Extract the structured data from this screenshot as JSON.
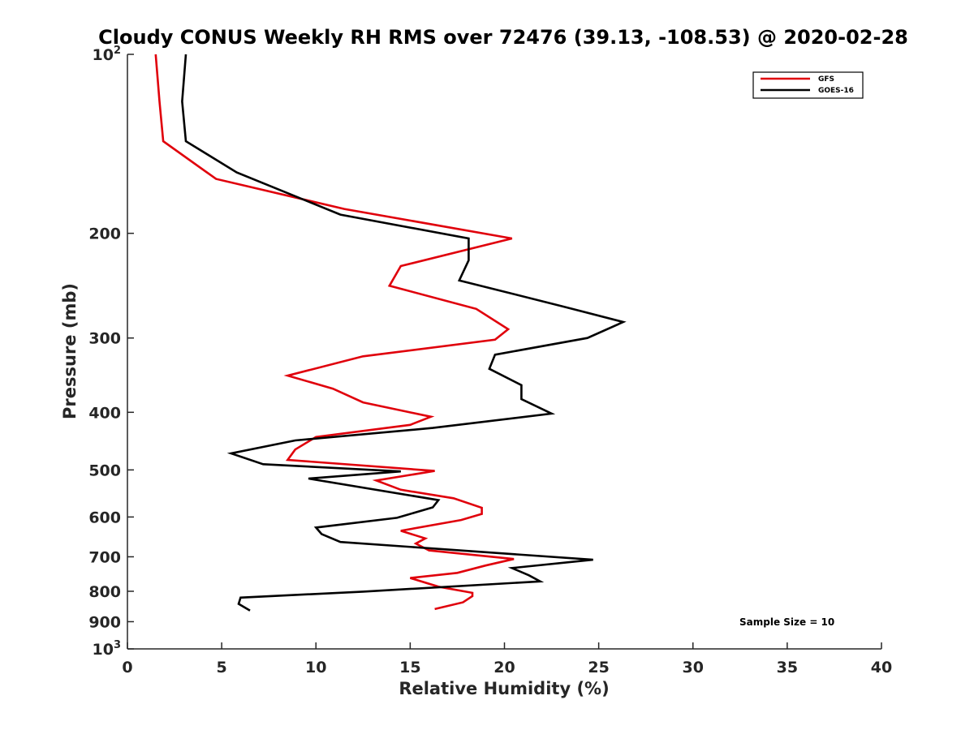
{
  "chart_data": {
    "type": "line",
    "title": "Cloudy CONUS Weekly RH RMS over 72476 (39.13, -108.53) @ 2020-02-28",
    "xlabel": "Relative Humidity (%)",
    "ylabel": "Pressure (mb)",
    "xlim": [
      0,
      40
    ],
    "ylim": [
      100,
      1000
    ],
    "y_scale": "log",
    "y_reversed": true,
    "x_ticks": [
      "0",
      "5",
      "10",
      "15",
      "20",
      "25",
      "30",
      "35",
      "40"
    ],
    "y_ticks": [
      {
        "value": 100,
        "base": "10",
        "exp": "2"
      },
      {
        "value": 200,
        "label": "200"
      },
      {
        "value": 300,
        "label": "300"
      },
      {
        "value": 400,
        "label": "400"
      },
      {
        "value": 500,
        "label": "500"
      },
      {
        "value": 600,
        "label": "600"
      },
      {
        "value": 700,
        "label": "700"
      },
      {
        "value": 800,
        "label": "800"
      },
      {
        "value": 900,
        "label": "900"
      },
      {
        "value": 1000,
        "base": "10",
        "exp": "3"
      }
    ],
    "grid": false,
    "legend_position": "top-right",
    "annotation": "Sample Size = 10",
    "series": [
      {
        "name": "GFS",
        "color": "#e0000b",
        "points": [
          [
            1.5,
            100
          ],
          [
            1.7,
            120
          ],
          [
            1.9,
            140
          ],
          [
            4.7,
            162
          ],
          [
            11.5,
            182
          ],
          [
            20.4,
            204
          ],
          [
            14.5,
            227
          ],
          [
            13.9,
            245
          ],
          [
            18.5,
            268
          ],
          [
            20.2,
            290
          ],
          [
            19.5,
            302
          ],
          [
            12.5,
            322
          ],
          [
            8.5,
            347
          ],
          [
            10.9,
            365
          ],
          [
            12.5,
            385
          ],
          [
            16.1,
            407
          ],
          [
            15.0,
            420
          ],
          [
            10.0,
            440
          ],
          [
            8.9,
            462
          ],
          [
            8.5,
            481
          ],
          [
            16.3,
            502
          ],
          [
            13.2,
            521
          ],
          [
            14.5,
            540
          ],
          [
            17.3,
            558
          ],
          [
            18.8,
            579
          ],
          [
            18.8,
            593
          ],
          [
            17.7,
            607
          ],
          [
            14.5,
            633
          ],
          [
            15.8,
            652
          ],
          [
            15.3,
            665
          ],
          [
            16.0,
            683
          ],
          [
            20.5,
            706
          ],
          [
            19.0,
            724
          ],
          [
            17.5,
            745
          ],
          [
            15.0,
            760
          ],
          [
            16.5,
            786
          ],
          [
            18.3,
            805
          ],
          [
            18.3,
            815
          ],
          [
            17.8,
            835
          ],
          [
            16.3,
            857
          ]
        ]
      },
      {
        "name": "GOES-16",
        "color": "#000000",
        "points": [
          [
            3.1,
            100
          ],
          [
            2.9,
            120
          ],
          [
            3.1,
            140
          ],
          [
            5.8,
            158
          ],
          [
            11.3,
            186
          ],
          [
            18.1,
            204
          ],
          [
            18.1,
            222
          ],
          [
            17.6,
            240
          ],
          [
            23.0,
            265
          ],
          [
            26.3,
            282
          ],
          [
            24.4,
            300
          ],
          [
            19.5,
            320
          ],
          [
            19.2,
            338
          ],
          [
            20.9,
            360
          ],
          [
            20.9,
            380
          ],
          [
            22.5,
            402
          ],
          [
            16.2,
            425
          ],
          [
            8.9,
            446
          ],
          [
            5.5,
            469
          ],
          [
            7.2,
            489
          ],
          [
            14.5,
            503
          ],
          [
            9.6,
            517
          ],
          [
            16.5,
            562
          ],
          [
            16.2,
            578
          ],
          [
            14.3,
            602
          ],
          [
            10.0,
            625
          ],
          [
            10.3,
            641
          ],
          [
            11.3,
            661
          ],
          [
            24.7,
            708
          ],
          [
            20.4,
            731
          ],
          [
            21.3,
            752
          ],
          [
            21.9,
            770
          ],
          [
            12.5,
            801
          ],
          [
            6.0,
            820
          ],
          [
            5.9,
            840
          ],
          [
            6.5,
            862
          ]
        ]
      }
    ]
  }
}
